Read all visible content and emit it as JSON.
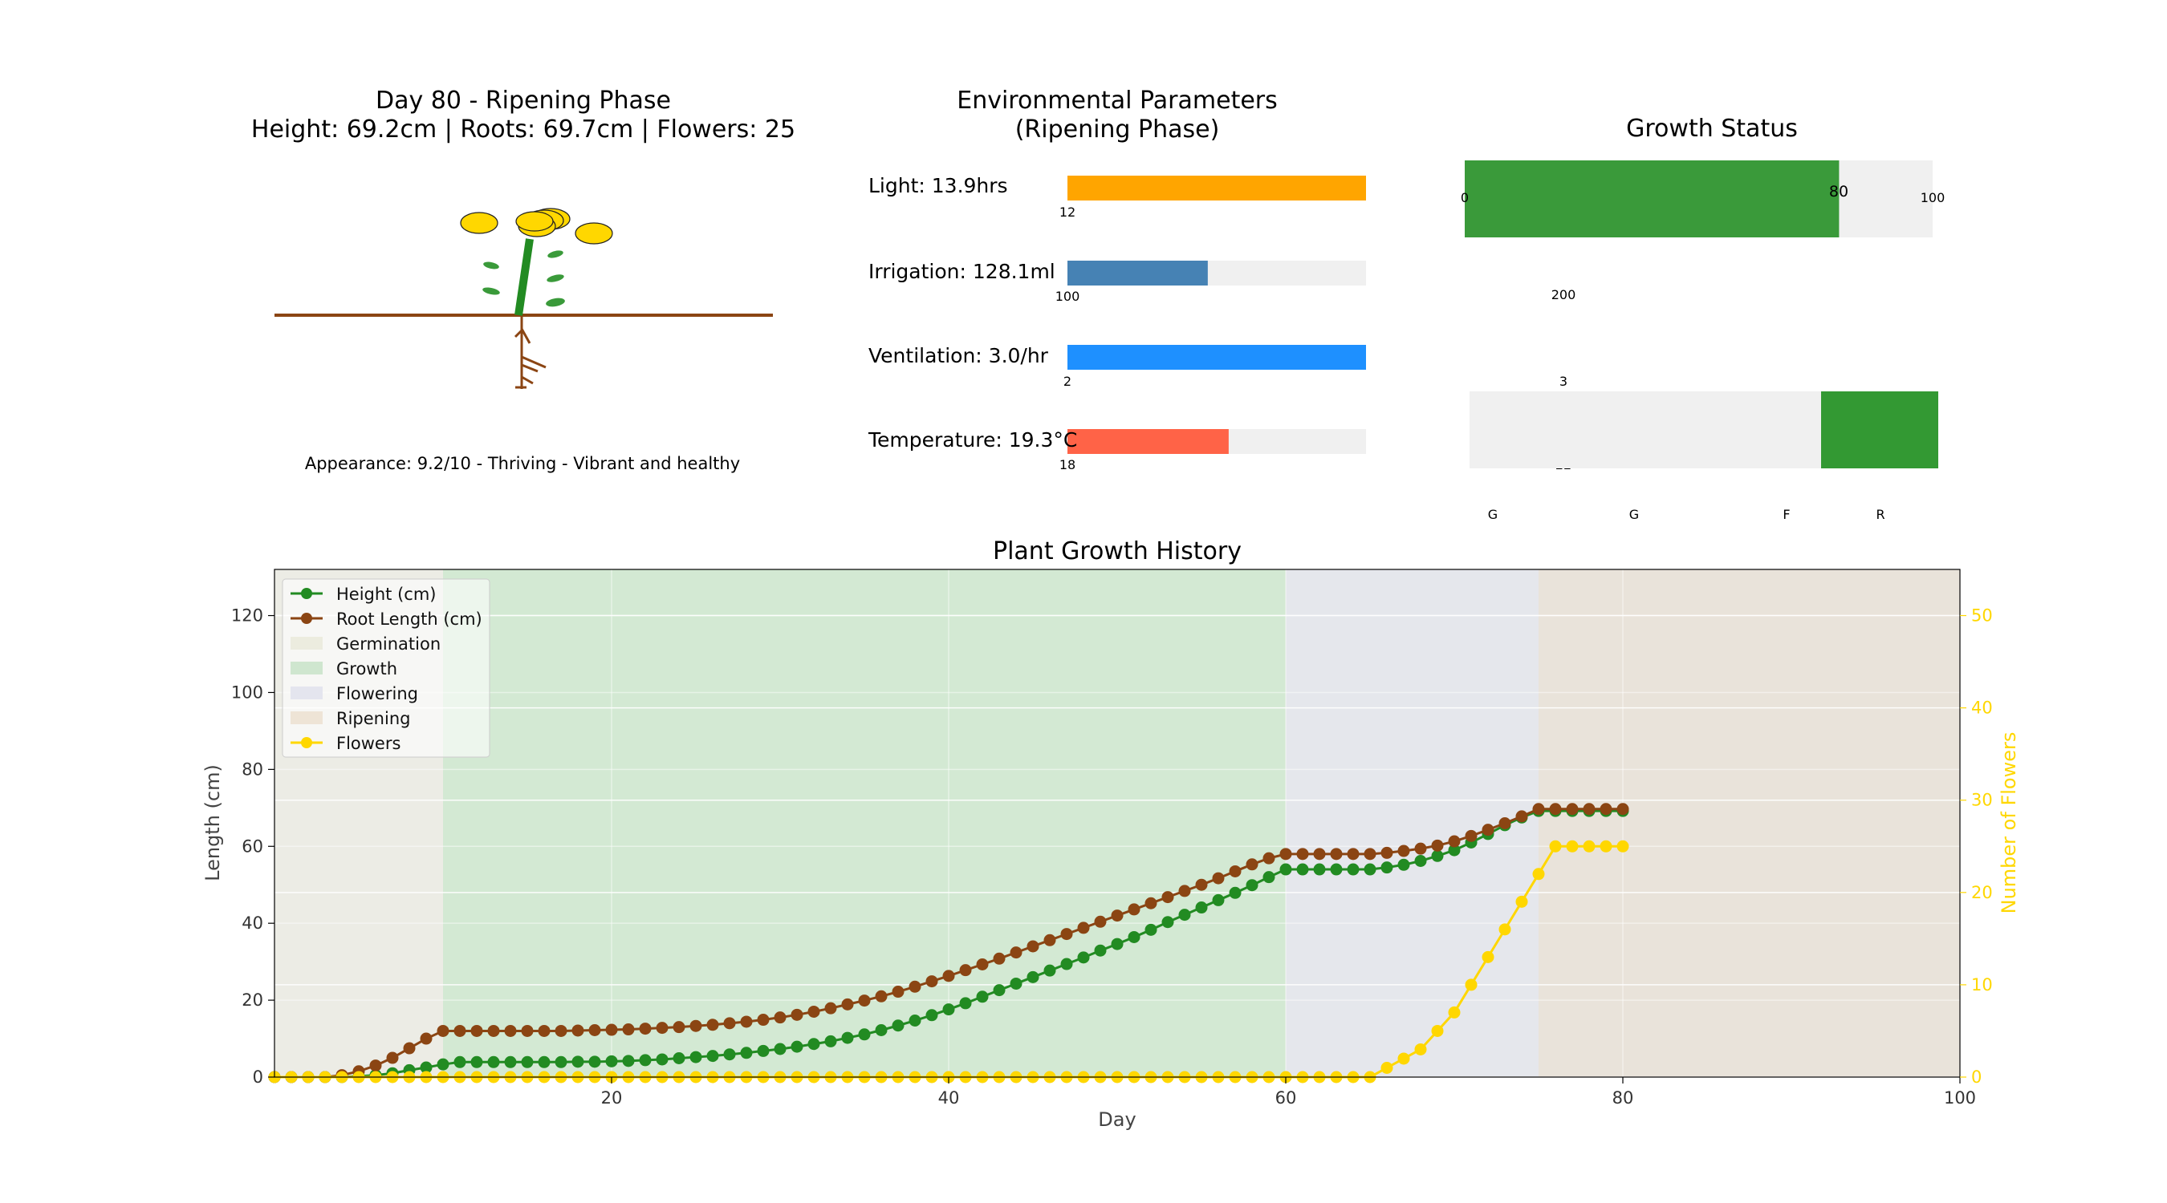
{
  "plant_panel": {
    "title_line1": "Day 80 - Ripening Phase",
    "title_line2": "Height: 69.2cm | Roots: 69.7cm | Flowers: 25",
    "appearance": "Appearance: 9.2/10 - Thriving - Vibrant and healthy",
    "colors": {
      "stem": "#228B22",
      "leaf": "#3a9a3a",
      "flower": "#FFD700",
      "ground": "#8B4513",
      "root": "#8B4513"
    }
  },
  "env_panel": {
    "title_line1": "Environmental Parameters",
    "title_line2": "(Ripening Phase)",
    "bars": [
      {
        "label": "Light: 13.9hrs",
        "min_label": "12",
        "fill_fraction": 1.0,
        "color": "#FFA500"
      },
      {
        "label": "Irrigation: 128.1ml",
        "min_label": "100",
        "fill_fraction": 0.47,
        "color": "#4682B4"
      },
      {
        "label": "Ventilation: 3.0/hr",
        "min_label": "2",
        "fill_fraction": 1.0,
        "color": "#1E90FF"
      },
      {
        "label": "Temperature: 19.3°C",
        "min_label": "18",
        "fill_fraction": 0.54,
        "color": "#FF6347"
      }
    ]
  },
  "status_panel": {
    "title": "Growth Status",
    "progress": {
      "value": 80,
      "min_label": "0",
      "value_label": "80",
      "max_label": "100",
      "color": "#3a9a3a"
    },
    "stray_labels": [
      "200",
      "3",
      "22"
    ],
    "phase_bar": {
      "active_fraction_start": 0.75,
      "color": "#339933"
    },
    "phase_labels": [
      "G",
      "G",
      "F",
      "R"
    ]
  },
  "chart_data": {
    "type": "line",
    "title": "Plant Growth History",
    "xlabel": "Day",
    "ylabel": "Length (cm)",
    "y2label": "Number of Flowers",
    "xlim": [
      0,
      100
    ],
    "ylim": [
      0,
      132
    ],
    "y2lim": [
      0,
      55
    ],
    "xticks": [
      20,
      40,
      60,
      80,
      100
    ],
    "yticks": [
      0,
      20,
      40,
      60,
      80,
      100,
      120
    ],
    "y2ticks": [
      0,
      10,
      20,
      30,
      40,
      50
    ],
    "grid": true,
    "legend_position": "top-left",
    "phases": [
      {
        "name": "Germination",
        "start": 0,
        "end": 10,
        "color": "#d9d9cc"
      },
      {
        "name": "Growth",
        "start": 10,
        "end": 60,
        "color": "#a8d4a8"
      },
      {
        "name": "Flowering",
        "start": 60,
        "end": 75,
        "color": "#cccfd9"
      },
      {
        "name": "Ripening",
        "start": 75,
        "end": 100,
        "color": "#d4c8b5"
      }
    ],
    "legend": [
      {
        "label": "Height (cm)",
        "kind": "line",
        "color": "#228B22"
      },
      {
        "label": "Root Length (cm)",
        "kind": "line",
        "color": "#8B4513"
      },
      {
        "label": "Germination",
        "kind": "patch",
        "color": "#ececdf"
      },
      {
        "label": "Growth",
        "kind": "patch",
        "color": "#cfe6cf"
      },
      {
        "label": "Flowering",
        "kind": "patch",
        "color": "#e4e5ee"
      },
      {
        "label": "Ripening",
        "kind": "patch",
        "color": "#eee4d6"
      },
      {
        "label": "Flowers",
        "kind": "line",
        "color": "#FFD700"
      }
    ],
    "x": [
      0,
      1,
      2,
      3,
      4,
      5,
      6,
      7,
      8,
      9,
      10,
      11,
      12,
      13,
      14,
      15,
      16,
      17,
      18,
      19,
      20,
      21,
      22,
      23,
      24,
      25,
      26,
      27,
      28,
      29,
      30,
      31,
      32,
      33,
      34,
      35,
      36,
      37,
      38,
      39,
      40,
      41,
      42,
      43,
      44,
      45,
      46,
      47,
      48,
      49,
      50,
      51,
      52,
      53,
      54,
      55,
      56,
      57,
      58,
      59,
      60,
      61,
      62,
      63,
      64,
      65,
      66,
      67,
      68,
      69,
      70,
      71,
      72,
      73,
      74,
      75,
      76,
      77,
      78,
      79,
      80
    ],
    "series": [
      {
        "name": "Height (cm)",
        "axis": "left",
        "color": "#228B22",
        "values": [
          0,
          0,
          0,
          0,
          0,
          0.2,
          0.5,
          1.0,
          1.8,
          2.5,
          3.3,
          3.9,
          3.9,
          3.9,
          3.9,
          3.9,
          3.9,
          3.9,
          4.0,
          4.0,
          4.1,
          4.2,
          4.4,
          4.6,
          4.9,
          5.2,
          5.5,
          5.9,
          6.3,
          6.8,
          7.3,
          7.9,
          8.6,
          9.3,
          10.2,
          11.1,
          12.2,
          13.4,
          14.7,
          16.1,
          17.6,
          19.2,
          20.9,
          22.6,
          24.3,
          26.0,
          27.7,
          29.4,
          31.1,
          32.9,
          34.6,
          36.4,
          38.3,
          40.3,
          42.2,
          44.1,
          46.0,
          47.9,
          49.9,
          52.0,
          54.0,
          54.0,
          54.0,
          54.0,
          54.0,
          54.0,
          54.5,
          55.2,
          56.2,
          57.5,
          59.0,
          61.0,
          63.2,
          65.5,
          67.5,
          69.2,
          69.2,
          69.2,
          69.2,
          69.2,
          69.2
        ]
      },
      {
        "name": "Root Length (cm)",
        "axis": "left",
        "color": "#8B4513",
        "values": [
          0,
          0,
          0,
          0,
          0.5,
          1.5,
          3.0,
          5.0,
          7.5,
          10.0,
          12.0,
          12.0,
          12.0,
          12.0,
          12.0,
          12.0,
          12.0,
          12.0,
          12.1,
          12.2,
          12.3,
          12.4,
          12.6,
          12.8,
          13.0,
          13.3,
          13.6,
          14.0,
          14.4,
          14.9,
          15.5,
          16.2,
          17.0,
          17.9,
          18.9,
          19.9,
          21.0,
          22.2,
          23.5,
          24.9,
          26.3,
          27.8,
          29.3,
          30.8,
          32.4,
          34.0,
          35.6,
          37.2,
          38.8,
          40.4,
          42.0,
          43.6,
          45.2,
          46.8,
          48.4,
          50.0,
          51.7,
          53.5,
          55.3,
          56.9,
          58.0,
          58.0,
          58.0,
          58.0,
          58.0,
          58.0,
          58.3,
          58.8,
          59.4,
          60.2,
          61.3,
          62.7,
          64.3,
          66.0,
          67.8,
          69.7,
          69.7,
          69.7,
          69.7,
          69.7,
          69.7
        ]
      },
      {
        "name": "Flowers",
        "axis": "right",
        "color": "#FFD700",
        "values": [
          0,
          0,
          0,
          0,
          0,
          0,
          0,
          0,
          0,
          0,
          0,
          0,
          0,
          0,
          0,
          0,
          0,
          0,
          0,
          0,
          0,
          0,
          0,
          0,
          0,
          0,
          0,
          0,
          0,
          0,
          0,
          0,
          0,
          0,
          0,
          0,
          0,
          0,
          0,
          0,
          0,
          0,
          0,
          0,
          0,
          0,
          0,
          0,
          0,
          0,
          0,
          0,
          0,
          0,
          0,
          0,
          0,
          0,
          0,
          0,
          0,
          0,
          0,
          0,
          0,
          0,
          1,
          2,
          3,
          5,
          7,
          10,
          13,
          16,
          19,
          22,
          25,
          25,
          25,
          25,
          25
        ]
      }
    ]
  }
}
